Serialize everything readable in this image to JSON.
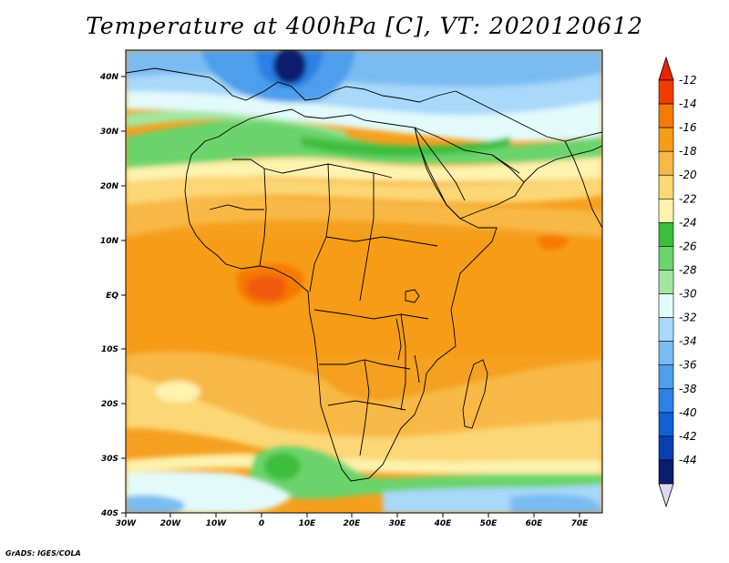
{
  "title": "Temperature at 400hPa [C], VT: 2020120612",
  "credit": "GrADS: IGES/COLA",
  "lon_ticks": [
    "30W",
    "20W",
    "10W",
    "0",
    "10E",
    "20E",
    "30E",
    "40E",
    "50E",
    "60E",
    "70E"
  ],
  "lat_ticks": [
    "40N",
    "30N",
    "20N",
    "10N",
    "EQ",
    "10S",
    "20S",
    "30S",
    "40S"
  ],
  "colorbar": {
    "labels": [
      "-12",
      "-14",
      "-16",
      "-18",
      "-20",
      "-22",
      "-24",
      "-26",
      "-28",
      "-30",
      "-32",
      "-34",
      "-36",
      "-38",
      "-40",
      "-42",
      "-44"
    ],
    "colors": [
      "#f03c00",
      "#f57a00",
      "#f79c17",
      "#f8b844",
      "#fcd774",
      "#fdf2ae",
      "#3cbe3c",
      "#6cd46c",
      "#a4e6a0",
      "#e2fafa",
      "#a8d8fa",
      "#7abcf2",
      "#4e9eec",
      "#2c80e6",
      "#1060d4",
      "#0840b4",
      "#0a1e6e"
    ],
    "top_arrow_color": "#ee2200",
    "bottom_arrow_color": "#e0d8f0"
  },
  "field_colors": {
    "ocean": "#f5a020",
    "orange": "#f79c17",
    "dark_orange": "#f57a00",
    "red": "#f05a10",
    "lt_orange": "#f8b844",
    "yellow": "#fcd774",
    "pale": "#fdf2ae",
    "green": "#3cbe3c",
    "mid_green": "#6cd46c",
    "lt_green": "#a4e6a0",
    "cyan": "#e2fafa",
    "lt_blue": "#a8d8fa",
    "blue": "#7abcf2",
    "mid_blue": "#4e9eec",
    "dk_blue": "#2c80e6",
    "navy": "#0a1e6e"
  }
}
